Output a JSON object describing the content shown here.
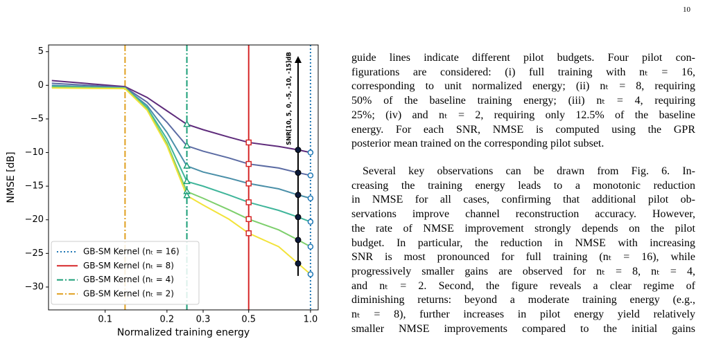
{
  "page_number": "10",
  "chart_data": {
    "type": "line",
    "xlabel": "Normalized training energy",
    "ylabel": "NMSE [dB]",
    "xscale": "log",
    "xlim": [
      0.053,
      1.09
    ],
    "ylim": [
      -33.4,
      6
    ],
    "xticks": [
      0.1,
      0.2,
      0.3,
      0.5,
      {
        "value": 1,
        "label": "1.0"
      }
    ],
    "yticks": [
      5,
      0,
      {
        "value": -5,
        "label": "−5"
      },
      {
        "value": -10,
        "label": "−10"
      },
      {
        "value": -15,
        "label": "−15"
      },
      {
        "value": -20,
        "label": "−20"
      },
      {
        "value": -25,
        "label": "−25"
      },
      {
        "value": -30,
        "label": "−30"
      }
    ],
    "x": [
      0.055,
      0.125,
      0.16,
      0.2,
      0.25,
      0.3,
      0.4,
      0.5,
      0.7,
      0.87,
      1.0
    ],
    "series": [
      {
        "color": "#5e2b7b",
        "values": [
          0.7,
          -0.2,
          -1.8,
          -3.8,
          -5.8,
          -6.6,
          -7.7,
          -8.5,
          -9.1,
          -9.6,
          -10.0
        ]
      },
      {
        "color": "#5b6ba3",
        "values": [
          0.3,
          -0.3,
          -2.5,
          -5.5,
          -9.0,
          -9.8,
          -10.8,
          -11.7,
          -12.3,
          -13.0,
          -13.4
        ]
      },
      {
        "color": "#4a8fa8",
        "values": [
          0.0,
          -0.4,
          -3.0,
          -7.0,
          -12.0,
          -12.9,
          -13.8,
          -14.6,
          -15.4,
          -16.3,
          -16.8
        ]
      },
      {
        "color": "#3fb59a",
        "values": [
          -0.2,
          -0.4,
          -3.3,
          -8.0,
          -14.3,
          -15.0,
          -16.3,
          -17.4,
          -18.6,
          -19.6,
          -20.3
        ]
      },
      {
        "color": "#7dcf6c",
        "values": [
          -0.3,
          -0.4,
          -3.5,
          -8.6,
          -15.8,
          -16.8,
          -18.5,
          -19.9,
          -21.5,
          -23.0,
          -24.0
        ]
      },
      {
        "color": "#f2e33a",
        "values": [
          -0.4,
          -0.5,
          -3.7,
          -9.0,
          -16.4,
          -17.8,
          -19.9,
          -22.0,
          -24.0,
          -26.5,
          -28.1
        ]
      }
    ],
    "vlines": [
      {
        "x": 1.0,
        "name": "GB-SM Kernel (nₜ = 16)",
        "color": "#1f77b4",
        "style": "dotted",
        "marker": "circle"
      },
      {
        "x": 0.5,
        "name": "GB-SM Kernel (nₜ = 8)",
        "color": "#d62728",
        "style": "solid",
        "marker": "square"
      },
      {
        "x": 0.25,
        "name": "GB-SM Kernel (nₜ = 4)",
        "color": "#1a9e77",
        "style": "dashdot",
        "marker": "triangle"
      },
      {
        "x": 0.125,
        "name": "GB-SM Kernel (nₜ = 2)",
        "color": "#e0a020",
        "style": "dashdot"
      }
    ],
    "legend": "lower left",
    "annotation": {
      "text": "SNR[10, 5, 0, -5, -10, -15]dB",
      "x": 0.87
    }
  },
  "paragraphs": [
    [
      "guide lines indicate different pilot budgets. Four pilot con-",
      "figurations are considered: (i) full training with nₜ = 16,",
      "corresponding to unit normalized energy; (ii) nₜ = 8, requiring",
      "50% of the baseline training energy; (iii) nₜ = 4, requiring",
      "25%; (iv) and nₜ = 2, requiring only 12.5% of the baseline",
      "energy. For each SNR, NMSE is computed using the GPR",
      "posterior mean trained on the corresponding pilot subset."
    ],
    [
      "Several key observations can be drawn from Fig. 6. In-",
      "creasing the training energy leads to a monotonic reduction",
      "in NMSE for all cases, confirming that additional pilot ob-",
      "servations improve channel reconstruction accuracy. However,",
      "the rate of NMSE improvement strongly depends on the pilot",
      "budget. In particular, the reduction in NMSE with increasing",
      "SNR is most pronounced for full training (nₜ = 16), while",
      "progressively smaller gains are observed for nₜ = 8, nₜ = 4,",
      "and nₜ = 2. Second, the figure reveals a clear regime of",
      "diminishing returns: beyond a moderate training energy (e.g.,",
      "nₜ = 8), further increases in pilot energy yield relatively",
      "smaller NMSE improvements compared to the initial gains"
    ]
  ]
}
